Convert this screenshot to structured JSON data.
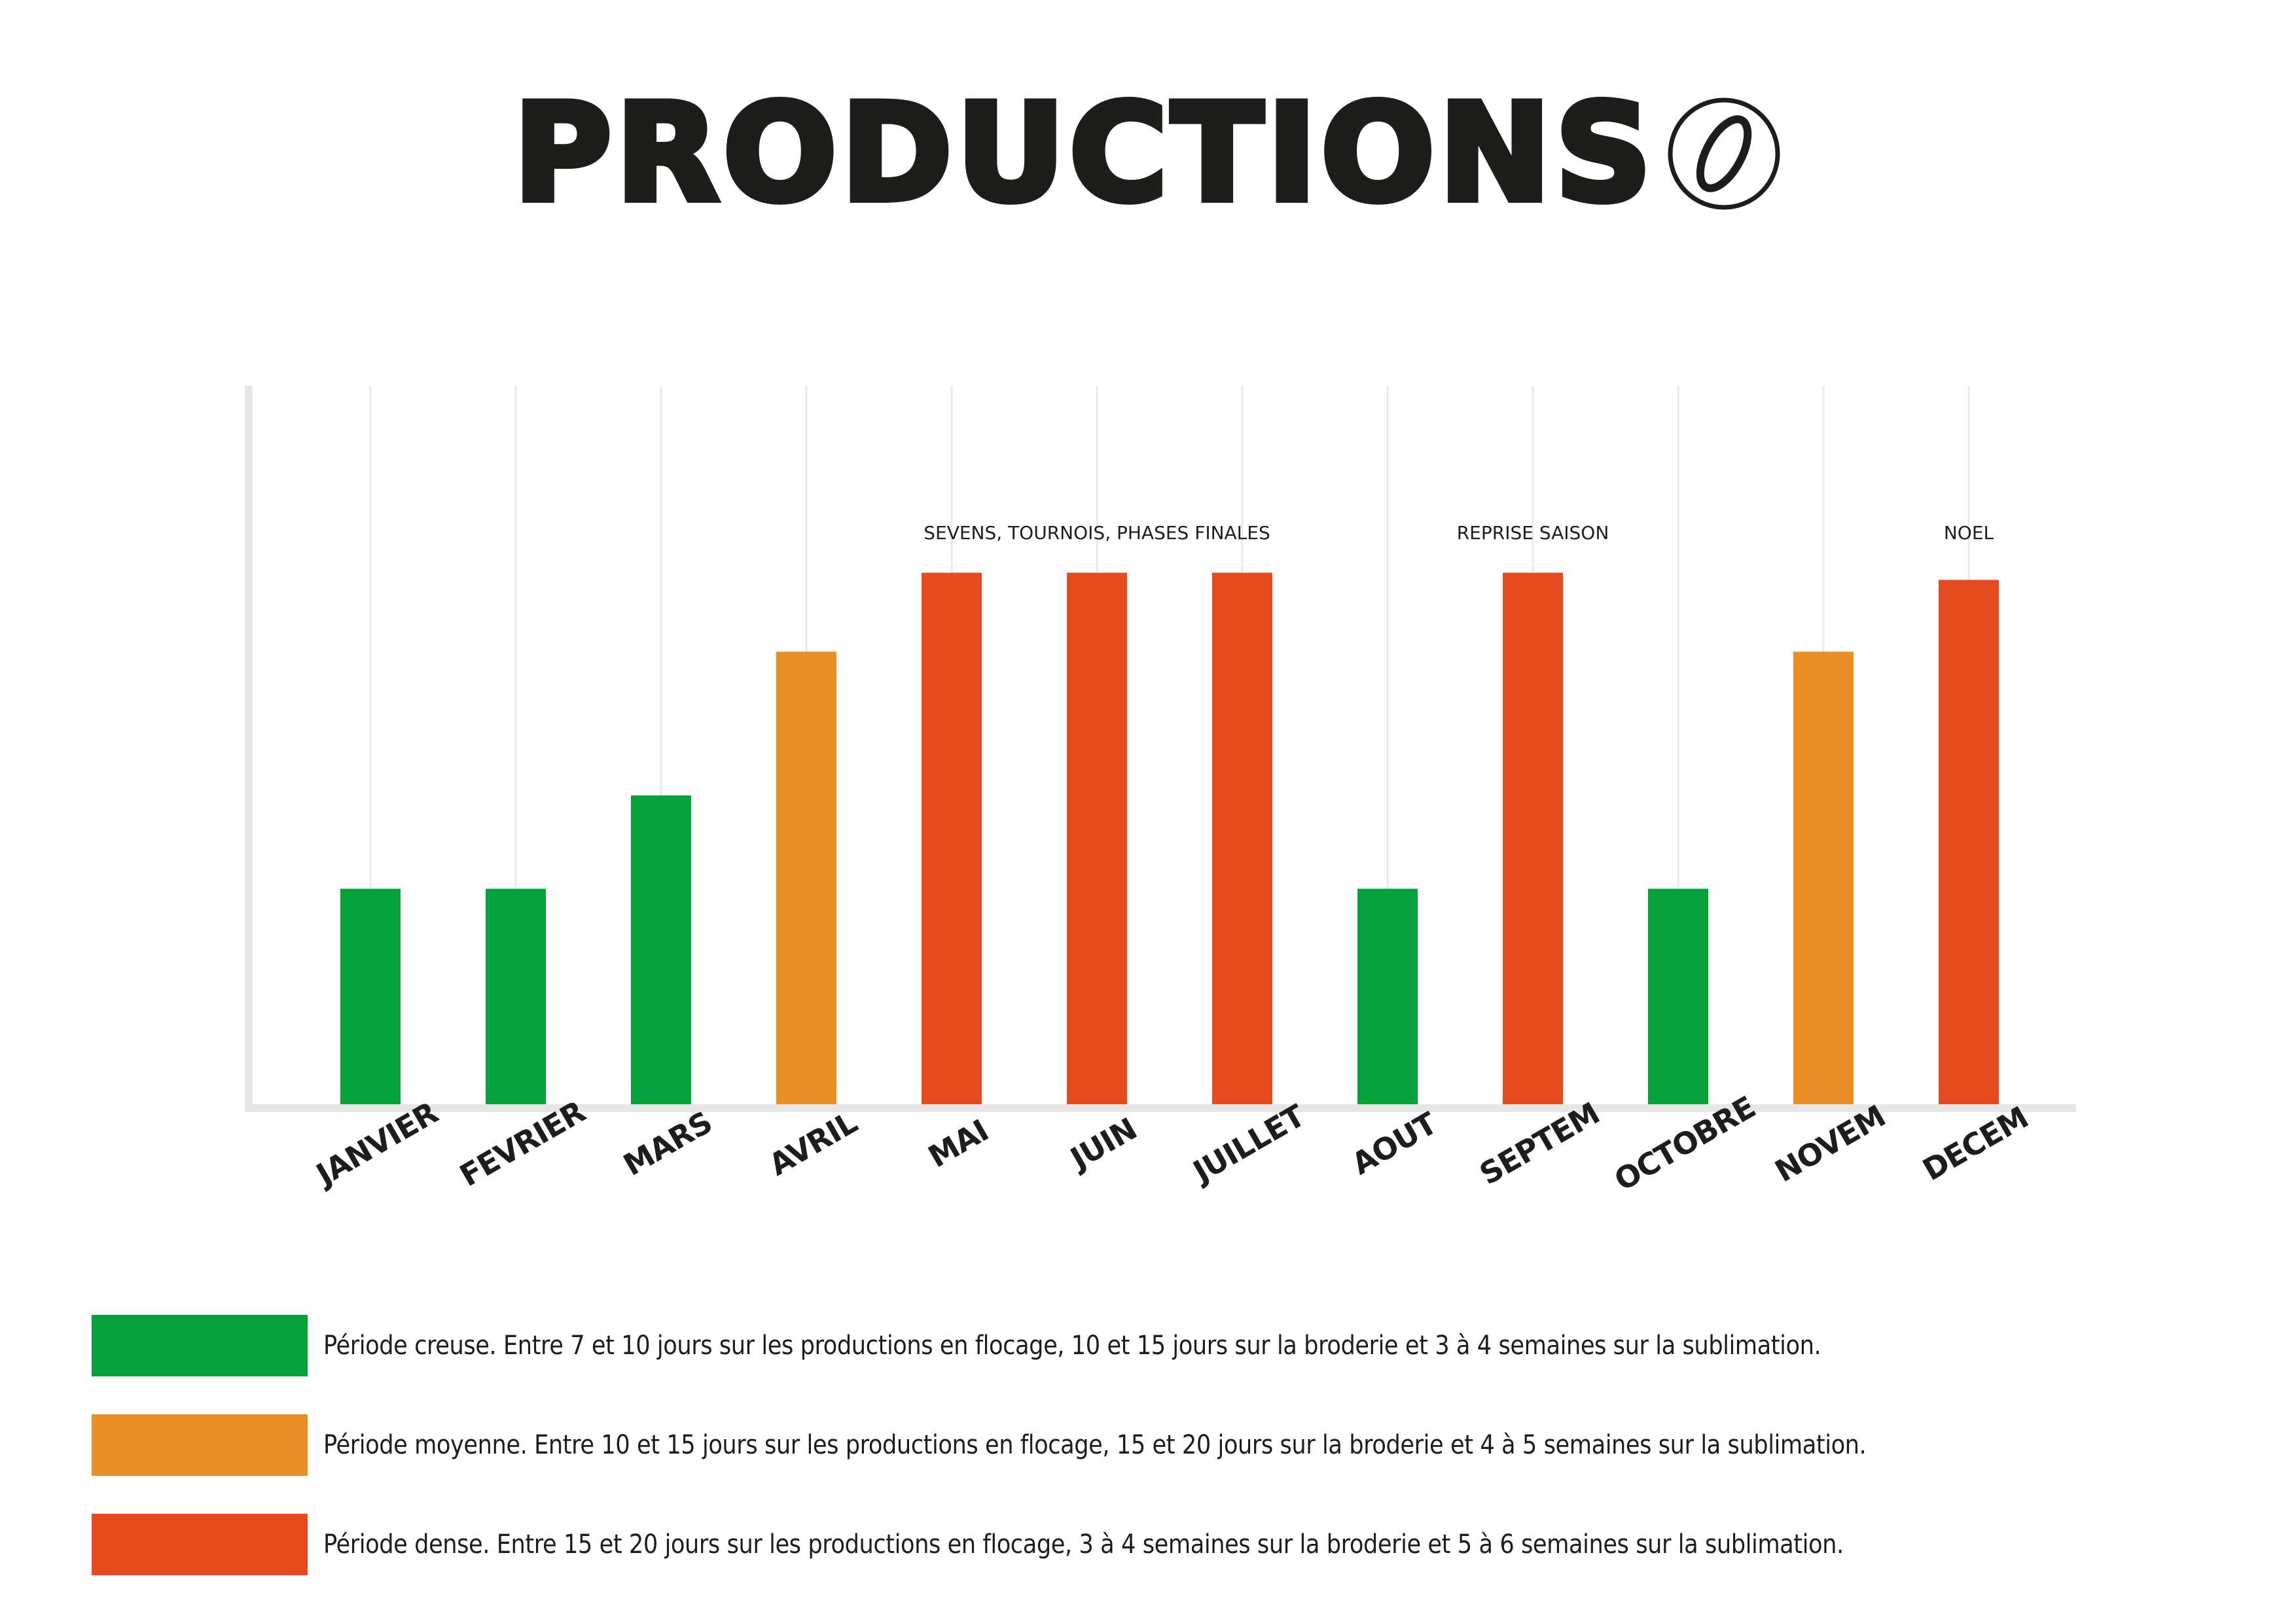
{
  "title": "PRODUCTIONS",
  "colors": {
    "low": "#05a23b",
    "medium": "#e98f26",
    "high": "#e64a1f",
    "axis": "#e6e6e6",
    "grid": "#e9e9e9",
    "text": "#1d1d1b"
  },
  "chart_data": {
    "type": "bar",
    "title": "",
    "xlabel": "",
    "ylabel": "",
    "ylim": [
      0,
      10
    ],
    "grid": true,
    "categories": [
      "JANVIER",
      "FEVRIER",
      "MARS",
      "AVRIL",
      "MAI",
      "JUIN",
      "JUILLET",
      "AOUT",
      "SEPTEM",
      "OCTOBRE",
      "NOVEM",
      "DECEM"
    ],
    "values": [
      3,
      3,
      4.3,
      6.3,
      7.4,
      7.4,
      7.4,
      3,
      7.4,
      3,
      6.3,
      7.3
    ],
    "levels": [
      "low",
      "low",
      "low",
      "medium",
      "high",
      "high",
      "high",
      "low",
      "high",
      "low",
      "medium",
      "high"
    ],
    "annotations": [
      {
        "text": "SEVENS, TOURNOIS, PHASES FINALES",
        "category": "JUIN"
      },
      {
        "text": "REPRISE SAISON",
        "category": "SEPTEM"
      },
      {
        "text": "NOEL",
        "category": "DECEM"
      }
    ]
  },
  "legend": [
    {
      "level": "low",
      "text": "Période creuse. Entre 7 et 10 jours sur les productions en flocage, 10 et 15 jours sur la broderie et 3 à 4 semaines sur la sublimation."
    },
    {
      "level": "medium",
      "text": "Période moyenne. Entre 10 et 15 jours sur les productions en flocage, 15 et 20 jours sur la broderie et 4 à 5 semaines sur la sublimation."
    },
    {
      "level": "high",
      "text": "Période dense. Entre 15 et 20 jours sur les productions en flocage, 3 à 4 semaines sur la broderie et 5 à 6 semaines sur la sublimation."
    }
  ]
}
